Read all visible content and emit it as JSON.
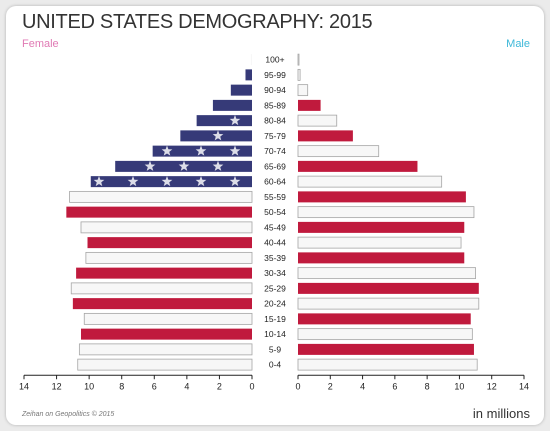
{
  "chart_data": {
    "type": "bar",
    "title": "UNITED STATES DEMOGRAPHY: 2015",
    "xlabel": "in millions",
    "source": "Zeihan on Geopolitics © 2015",
    "xlim": [
      0,
      14
    ],
    "x_ticks": [
      14,
      12,
      10,
      8,
      6,
      4,
      2,
      0
    ],
    "grid": false,
    "categories": [
      "100+",
      "95-99",
      "90-94",
      "85-89",
      "80-84",
      "75-79",
      "70-74",
      "65-69",
      "60-64",
      "55-59",
      "50-54",
      "45-49",
      "40-44",
      "35-39",
      "30-34",
      "25-29",
      "20-24",
      "15-19",
      "10-14",
      "5-9",
      "0-4"
    ],
    "series": [
      {
        "name": "Female",
        "color": "#e07ab4",
        "values": [
          0.07,
          0.4,
          1.3,
          2.4,
          3.4,
          4.4,
          6.1,
          8.4,
          9.9,
          11.2,
          11.4,
          10.5,
          10.1,
          10.2,
          10.8,
          11.1,
          11.0,
          10.3,
          10.5,
          10.6,
          10.7
        ]
      },
      {
        "name": "Male",
        "color": "#3db8d8",
        "values": [
          0.02,
          0.13,
          0.6,
          1.4,
          2.4,
          3.4,
          5.0,
          7.4,
          8.9,
          10.4,
          10.9,
          10.3,
          10.1,
          10.3,
          11.0,
          11.2,
          11.2,
          10.7,
          10.8,
          10.9,
          11.1
        ]
      }
    ],
    "bar_styles": {
      "blue": "#363a78",
      "red": "#c01a3d",
      "white": "#f7f7f7",
      "outline": "#a5a5a5",
      "star": "#dcdde8"
    }
  }
}
